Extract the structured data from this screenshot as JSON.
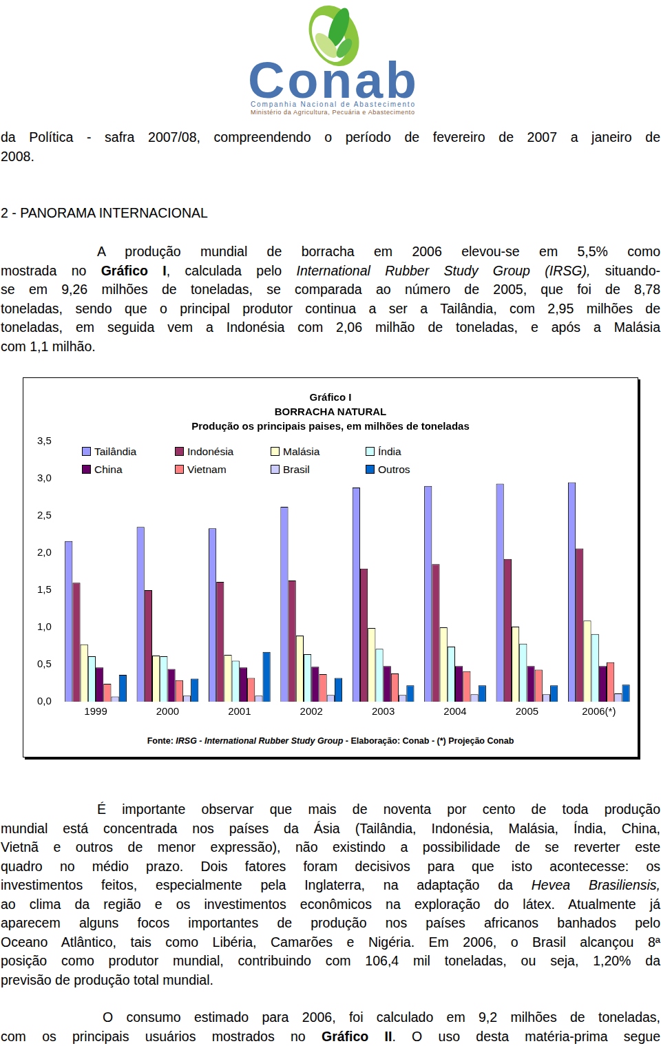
{
  "logo": {
    "name": "Conab",
    "subtitle": "Companhia Nacional de Abastecimento",
    "ministry": "Ministério da Agricultura, Pecuária e Abastecimento"
  },
  "paragraphs": [
    [
      [
        {
          "text": "da Política -  safra 2007/08, compreendendo o período de fevereiro de 2007 a janeiro de"
        }
      ],
      [
        {
          "text": "2008."
        }
      ]
    ],
    [
      [
        {
          "text": "2 - PANORAMA INTERNACIONAL"
        }
      ]
    ],
    [
      [
        {
          "text": "A produção mundial de borracha em 2006 elevou-se em 5,5% como"
        }
      ],
      [
        {
          "text": "mostrada no "
        },
        {
          "text": "Gráfico I",
          "bold": true
        },
        {
          "text": ", calculada pelo "
        },
        {
          "text": "International Rubber Study Group (IRSG),",
          "italic": true
        },
        {
          "text": " situando-"
        }
      ],
      [
        {
          "text": "se em 9,26 milhões de toneladas, se comparada ao número de 2005, que foi de 8,78"
        }
      ],
      [
        {
          "text": "toneladas, sendo que o principal produtor continua a ser a Tailândia, com 2,95 milhões de"
        }
      ],
      [
        {
          "text": "toneladas, em seguida vem a Indonésia com  2,06 milhão de toneladas, e após a Malásia"
        }
      ],
      [
        {
          "text": "com 1,1 milhão."
        }
      ]
    ],
    [
      [
        {
          "text": "É importante observar que mais de noventa por cento de toda produção"
        }
      ],
      [
        {
          "text": "mundial está concentrada nos países da Ásia (Tailândia, Indonésia, Malásia, Índia, China,"
        }
      ],
      [
        {
          "text": "Vietnã e outros de menor expressão), não existindo a possibilidade de se reverter este"
        }
      ],
      [
        {
          "text": "quadro no médio prazo. Dois fatores foram decisivos para que isto acontecesse: os"
        }
      ],
      [
        {
          "text": "investimentos feitos, especialmente pela Inglaterra, na adaptação da "
        },
        {
          "text": "Hevea Brasiliensis,",
          "italic": true
        }
      ],
      [
        {
          "text": "ao clima da região e os investimentos econômicos na exploração do látex. Atualmente já"
        }
      ],
      [
        {
          "text": "aparecem alguns focos importantes de produção nos países africanos banhados pelo"
        }
      ],
      [
        {
          "text": "Oceano Atlântico, tais como Libéria, Camarões e Nigéria. Em 2006, o Brasil alcançou 8ª"
        }
      ],
      [
        {
          "text": "posição como produtor mundial, contribuindo com 106,4 mil toneladas, ou seja, 1,20% da"
        }
      ],
      [
        {
          "text": "previsão de produção total mundial."
        }
      ]
    ],
    [
      [
        {
          "text": "O consumo estimado para 2006, foi calculado em 9,2 milhões de toneladas,"
        }
      ],
      [
        {
          "text": "com os principais usuários mostrados no "
        },
        {
          "text": "Gráfico II",
          "bold": true
        },
        {
          "text": ".  O uso desta matéria-prima segue"
        }
      ]
    ]
  ],
  "chart_data": {
    "type": "bar",
    "title": "Gráfico I",
    "subtitle": [
      "BORRACHA NATURAL",
      "Produção os principais paises, em milhões de toneladas"
    ],
    "footer": [
      {
        "text": "Fonte: "
      },
      {
        "text": "IRSG - International Rubber Study Group",
        "italic": true
      },
      {
        "text": " - Elaboração: Conab - (*) Projeção Conab"
      }
    ],
    "categories": [
      "1999",
      "2000",
      "2001",
      "2002",
      "2003",
      "2004",
      "2005",
      "2006(*)"
    ],
    "series": [
      {
        "name": "Tailândia",
        "color": "#9999ff",
        "values": [
          2.16,
          2.35,
          2.33,
          2.62,
          2.88,
          2.9,
          2.93,
          2.95
        ]
      },
      {
        "name": "Indonésia",
        "color": "#993366",
        "values": [
          1.6,
          1.5,
          1.61,
          1.63,
          1.79,
          1.85,
          1.92,
          2.06
        ]
      },
      {
        "name": "Malásia",
        "color": "#ffffcc",
        "values": [
          0.77,
          0.62,
          0.63,
          0.89,
          0.99,
          1.0,
          1.01,
          1.09
        ]
      },
      {
        "name": "Índia",
        "color": "#ccffff",
        "values": [
          0.61,
          0.61,
          0.55,
          0.64,
          0.71,
          0.74,
          0.78,
          0.91
        ]
      },
      {
        "name": "China",
        "color": "#660066",
        "values": [
          0.46,
          0.44,
          0.46,
          0.47,
          0.48,
          0.48,
          0.48,
          0.48
        ]
      },
      {
        "name": "Vietnam",
        "color": "#ff8080",
        "values": [
          0.24,
          0.29,
          0.32,
          0.37,
          0.38,
          0.41,
          0.43,
          0.53
        ]
      },
      {
        "name": "Brasil",
        "color": "#ccccff",
        "values": [
          0.07,
          0.08,
          0.08,
          0.09,
          0.09,
          0.1,
          0.1,
          0.11
        ]
      },
      {
        "name": "Outros",
        "color": "#0066cc",
        "values": [
          0.36,
          0.31,
          0.67,
          0.32,
          0.22,
          0.22,
          0.22,
          0.23
        ]
      }
    ],
    "ylim": [
      0,
      3.5
    ],
    "yticks": [
      {
        "value": 0,
        "label": "0,0"
      },
      {
        "value": 0.5,
        "label": "0,5"
      },
      {
        "value": 1,
        "label": "1,0"
      },
      {
        "value": 1.5,
        "label": "1,5"
      },
      {
        "value": 2,
        "label": "2,0"
      },
      {
        "value": 2.5,
        "label": "2,5"
      },
      {
        "value": 3,
        "label": "3,0"
      },
      {
        "value": 3.5,
        "label": "3,5"
      }
    ],
    "grid": false,
    "legend": "top"
  }
}
